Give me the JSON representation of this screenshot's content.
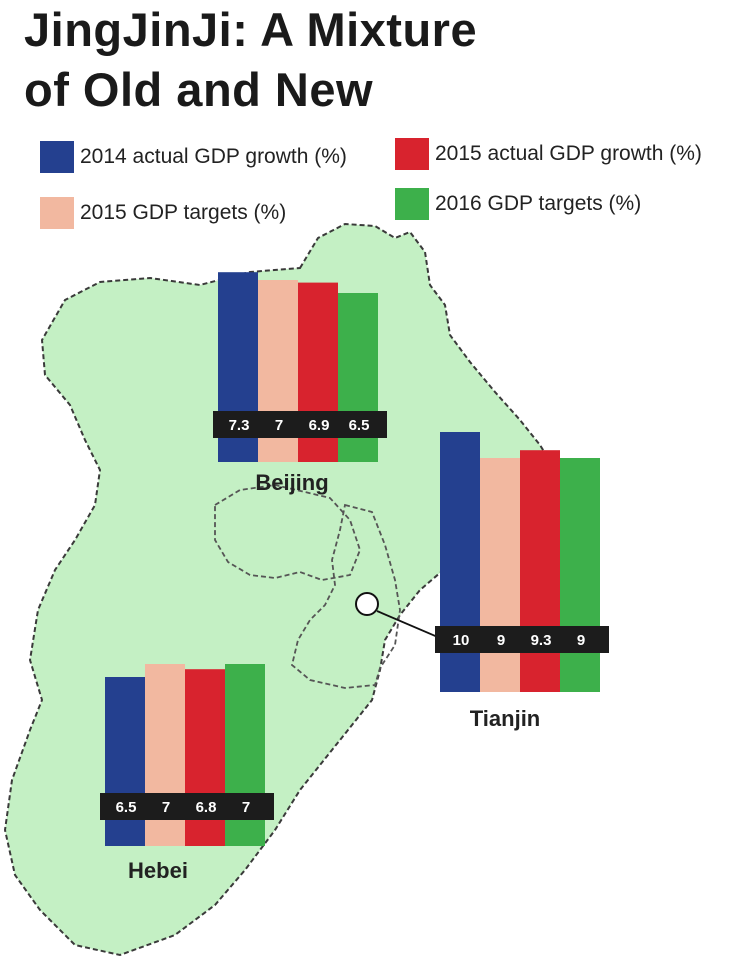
{
  "title": {
    "line1": "JingJinJi: A Mixture",
    "line2": "of Old and New"
  },
  "colors": {
    "map_fill": "#c4f0c4",
    "map_border": "#3a3a3a",
    "label_band": "#1c1c1c"
  },
  "chart_data": {
    "type": "bar",
    "title": "JingJinJi: A Mixture of Old and New",
    "series": [
      {
        "name": "2014 actual GDP growth (%)",
        "color": "#24408f"
      },
      {
        "name": "2015 GDP targets (%)",
        "color": "#f2b8a0"
      },
      {
        "name": "2015 actual GDP growth (%)",
        "color": "#d8232e"
      },
      {
        "name": "2016 GDP targets (%)",
        "color": "#3db04b"
      }
    ],
    "regions": [
      {
        "name": "Beijing",
        "values": [
          7.3,
          7,
          6.9,
          6.5
        ],
        "labels": [
          "7.3",
          "7",
          "6.9",
          "6.5"
        ]
      },
      {
        "name": "Tianjin",
        "values": [
          10,
          9,
          9.3,
          9
        ],
        "labels": [
          "10",
          "9",
          "9.3",
          "9"
        ]
      },
      {
        "name": "Hebei",
        "values": [
          6.5,
          7,
          6.8,
          7
        ],
        "labels": [
          "6.5",
          "7",
          "6.8",
          "7"
        ]
      }
    ],
    "legend_position": "top"
  }
}
